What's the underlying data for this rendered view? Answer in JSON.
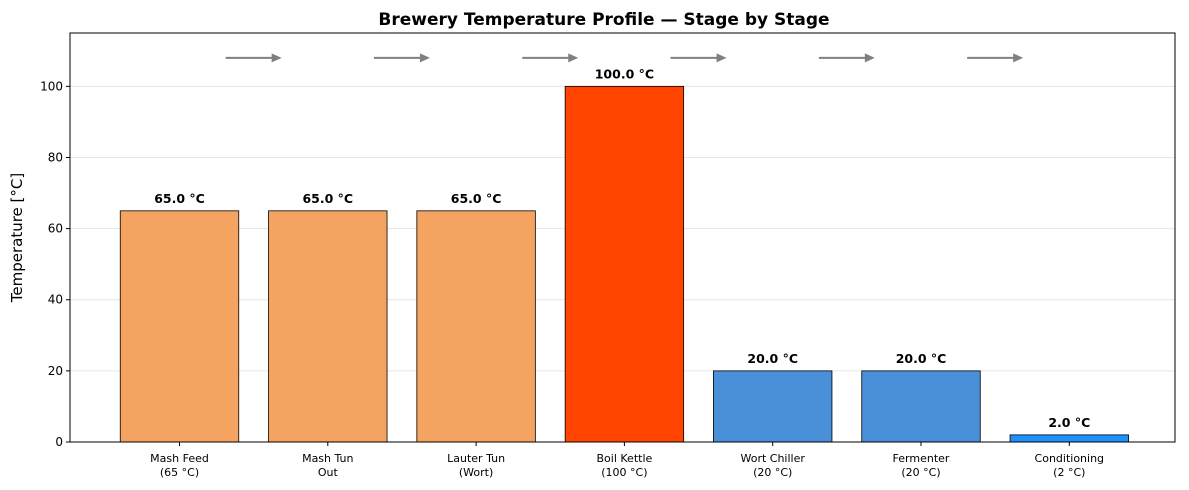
{
  "chart_data": {
    "type": "bar",
    "title": "Brewery Temperature Profile — Stage by Stage",
    "xlabel": "",
    "ylabel": "Temperature [°C]",
    "ylim": [
      0,
      115
    ],
    "yticks": [
      0,
      20,
      40,
      60,
      80,
      100
    ],
    "grid": "y",
    "categories": [
      [
        "Mash Feed",
        "(65 °C)"
      ],
      [
        "Mash Tun",
        "Out"
      ],
      [
        "Lauter Tun",
        "(Wort)"
      ],
      [
        "Boil Kettle",
        "(100 °C)"
      ],
      [
        "Wort Chiller",
        "(20 °C)"
      ],
      [
        "Fermenter",
        "(20 °C)"
      ],
      [
        "Conditioning",
        "(2 °C)"
      ]
    ],
    "values": [
      65.0,
      65.0,
      65.0,
      100.0,
      20.0,
      20.0,
      2.0
    ],
    "data_labels": [
      "65.0 °C",
      "65.0 °C",
      "65.0 °C",
      "100.0 °C",
      "20.0 °C",
      "20.0 °C",
      "2.0 °C"
    ],
    "colors": [
      "#f4a460",
      "#f4a460",
      "#f4a460",
      "#ff4500",
      "#4a90d9",
      "#4a90d9",
      "#1e90ff"
    ],
    "flow_arrows": {
      "count": 6,
      "y_value": 108,
      "color": "#808080",
      "meaning": "stage-to-stage flow"
    }
  }
}
